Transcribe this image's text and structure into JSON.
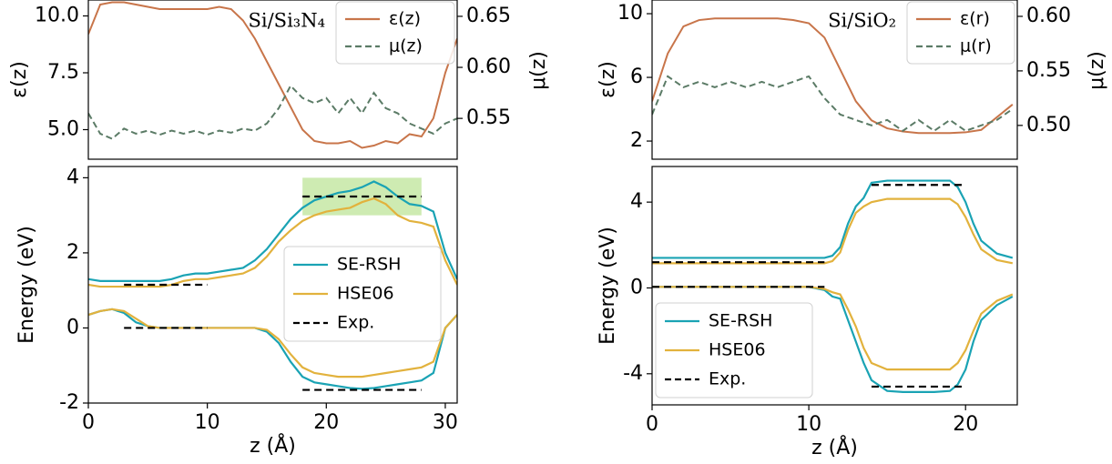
{
  "chart_data": [
    {
      "type": "line",
      "annotation": "Si/Si₃N₄",
      "ylabel": "ε(z)",
      "y2label": "μ(z)",
      "x": [
        0,
        1,
        2,
        3,
        4,
        5,
        6,
        7,
        8,
        9,
        10,
        11,
        12,
        13,
        14,
        15,
        16,
        17,
        18,
        19,
        20,
        21,
        22,
        23,
        24,
        25,
        26,
        27,
        28,
        29,
        30,
        31
      ],
      "xlim": [
        0,
        31
      ],
      "ylim": [
        3.7,
        10.7
      ],
      "yticks": [
        {
          "value": 5,
          "label": "5.0"
        },
        7.5,
        {
          "value": 10,
          "label": "10.0"
        }
      ],
      "y2lim": [
        0.51,
        0.666
      ],
      "y2ticks": [
        0.55,
        {
          "value": 0.6,
          "label": "0.60"
        },
        0.65
      ],
      "legend": "upper right",
      "series": [
        {
          "name": "ε(z)",
          "color": "#c8754a",
          "values": [
            9.2,
            10.5,
            10.6,
            10.6,
            10.5,
            10.4,
            10.3,
            10.3,
            10.3,
            10.3,
            10.3,
            10.4,
            10.3,
            9.8,
            9.0,
            8.0,
            7.0,
            6.0,
            5.0,
            4.5,
            4.4,
            4.4,
            4.5,
            4.2,
            4.3,
            4.5,
            4.4,
            4.8,
            4.7,
            5.5,
            7.5,
            9.0
          ]
        },
        {
          "name": "μ(z)",
          "color": "#5b7b66",
          "dash": true,
          "axis": "y2",
          "values": [
            0.555,
            0.535,
            0.53,
            0.54,
            0.535,
            0.538,
            0.534,
            0.538,
            0.535,
            0.538,
            0.534,
            0.538,
            0.536,
            0.54,
            0.538,
            0.545,
            0.56,
            0.582,
            0.57,
            0.565,
            0.57,
            0.555,
            0.57,
            0.555,
            0.575,
            0.56,
            0.555,
            0.545,
            0.54,
            0.535,
            0.545,
            0.55
          ]
        }
      ]
    },
    {
      "type": "band",
      "xlabel": "z (Å)",
      "ylabel": "Energy (eV)",
      "x": [
        0,
        1,
        2,
        3,
        4,
        5,
        6,
        7,
        8,
        9,
        10,
        11,
        12,
        13,
        14,
        15,
        16,
        17,
        18,
        19,
        20,
        21,
        22,
        23,
        24,
        25,
        26,
        27,
        28,
        29,
        30,
        31
      ],
      "xlim": [
        0,
        31
      ],
      "xticks": [
        0,
        10,
        20,
        30
      ],
      "ylim": [
        -2,
        4.3
      ],
      "yticks": [
        -2,
        0,
        2,
        4
      ],
      "legend": "center right",
      "highlight": {
        "x": [
          18,
          28
        ],
        "y": [
          3.0,
          4.0
        ],
        "color": "#c6e8a4"
      },
      "series": [
        {
          "name": "SE-RSH",
          "color": "#1aa3b4",
          "cbm": [
            1.3,
            1.25,
            1.25,
            1.25,
            1.25,
            1.25,
            1.25,
            1.3,
            1.4,
            1.45,
            1.45,
            1.5,
            1.55,
            1.6,
            1.8,
            2.1,
            2.5,
            2.9,
            3.2,
            3.4,
            3.5,
            3.6,
            3.65,
            3.75,
            3.9,
            3.75,
            3.5,
            3.3,
            3.25,
            3.1,
            2.0,
            1.3
          ],
          "vbm": [
            0.35,
            0.45,
            0.5,
            0.4,
            0.15,
            0.05,
            0,
            0,
            0,
            0,
            0,
            0,
            0,
            0,
            0,
            -0.1,
            -0.4,
            -0.9,
            -1.3,
            -1.45,
            -1.5,
            -1.55,
            -1.6,
            -1.62,
            -1.6,
            -1.55,
            -1.5,
            -1.45,
            -1.4,
            -1.2,
            0,
            0.35
          ]
        },
        {
          "name": "HSE06",
          "color": "#e2b23d",
          "cbm": [
            1.15,
            1.1,
            1.1,
            1.1,
            1.1,
            1.1,
            1.1,
            1.15,
            1.25,
            1.3,
            1.3,
            1.35,
            1.4,
            1.45,
            1.6,
            1.9,
            2.3,
            2.6,
            2.85,
            3.0,
            3.1,
            3.15,
            3.2,
            3.35,
            3.45,
            3.3,
            3.0,
            2.85,
            2.8,
            2.7,
            1.8,
            1.15
          ],
          "vbm": [
            0.35,
            0.45,
            0.5,
            0.45,
            0.25,
            0.05,
            0,
            0,
            0,
            0,
            0,
            0,
            0,
            0,
            0,
            -0.05,
            -0.3,
            -0.7,
            -1.05,
            -1.2,
            -1.25,
            -1.3,
            -1.3,
            -1.3,
            -1.25,
            -1.2,
            -1.15,
            -1.1,
            -1.05,
            -0.9,
            0,
            0.35
          ]
        },
        {
          "name": "Exp.",
          "color": "#000000",
          "dash": true,
          "segments": [
            {
              "x": [
                3,
                10
              ],
              "y": 1.15
            },
            {
              "x": [
                3,
                10
              ],
              "y": 0
            },
            {
              "x": [
                18,
                28
              ],
              "y": 3.5
            },
            {
              "x": [
                18,
                28
              ],
              "y": -1.65
            }
          ]
        }
      ]
    },
    {
      "type": "line",
      "annotation": "Si/SiO₂",
      "ylabel": "ε(z)",
      "y2label": "μ(z)",
      "x": [
        0,
        1,
        2,
        3,
        4,
        5,
        6,
        7,
        8,
        9,
        10,
        11,
        12,
        13,
        14,
        15,
        16,
        17,
        18,
        19,
        20,
        21,
        22,
        23
      ],
      "xlim": [
        0,
        23.3
      ],
      "ylim": [
        0.86,
        10.86
      ],
      "yticks": [
        2,
        6,
        10
      ],
      "y2lim": [
        0.469,
        0.615
      ],
      "y2ticks": [
        {
          "value": 0.5,
          "label": "0.50"
        },
        0.55,
        {
          "value": 0.6,
          "label": "0.60"
        }
      ],
      "legend": "upper right",
      "series": [
        {
          "name": "ε(r)",
          "color": "#c8754a",
          "values": [
            4.5,
            7.5,
            9.2,
            9.6,
            9.7,
            9.7,
            9.7,
            9.7,
            9.7,
            9.6,
            9.4,
            8.5,
            6.5,
            4.5,
            3.3,
            2.8,
            2.6,
            2.5,
            2.5,
            2.5,
            2.55,
            2.7,
            3.5,
            4.3
          ]
        },
        {
          "name": "μ(r)",
          "color": "#5b7b66",
          "dash": true,
          "axis": "y2",
          "values": [
            0.51,
            0.545,
            0.535,
            0.54,
            0.535,
            0.54,
            0.535,
            0.54,
            0.535,
            0.54,
            0.545,
            0.525,
            0.51,
            0.505,
            0.5,
            0.505,
            0.495,
            0.505,
            0.495,
            0.505,
            0.495,
            0.5,
            0.505,
            0.515
          ]
        }
      ]
    },
    {
      "type": "band",
      "xlabel": "z (Å)",
      "ylabel": "Energy (eV)",
      "x": [
        0,
        2,
        4,
        6,
        8,
        10,
        11,
        11.5,
        12,
        12.5,
        13,
        13.5,
        14,
        15,
        16,
        17,
        18,
        19,
        19.5,
        20,
        20.5,
        21,
        22,
        23
      ],
      "xlim": [
        0,
        23.3
      ],
      "xticks": [
        0,
        10,
        20
      ],
      "ylim": [
        -5.45,
        5.66
      ],
      "yticks": [
        -4,
        0,
        4
      ],
      "legend": "lower left",
      "series": [
        {
          "name": "SE-RSH",
          "color": "#1aa3b4",
          "cbm": [
            1.4,
            1.4,
            1.4,
            1.4,
            1.4,
            1.4,
            1.4,
            1.5,
            1.9,
            3.0,
            3.8,
            4.2,
            4.9,
            5.0,
            5.0,
            5.0,
            5.0,
            5.0,
            4.7,
            4.0,
            3.0,
            2.2,
            1.6,
            1.4
          ],
          "vbm": [
            0.05,
            0.05,
            0.05,
            0.05,
            0.05,
            0.05,
            -0.1,
            -0.4,
            -0.5,
            -1.5,
            -2.5,
            -3.5,
            -4.3,
            -4.8,
            -4.85,
            -4.85,
            -4.85,
            -4.8,
            -4.5,
            -3.8,
            -2.5,
            -1.5,
            -0.8,
            -0.4
          ]
        },
        {
          "name": "HSE06",
          "color": "#e2b23d",
          "cbm": [
            1.15,
            1.15,
            1.15,
            1.15,
            1.15,
            1.15,
            1.15,
            1.25,
            1.65,
            2.7,
            3.5,
            3.8,
            4.0,
            4.15,
            4.15,
            4.15,
            4.15,
            4.15,
            3.9,
            3.3,
            2.5,
            1.8,
            1.3,
            1.15
          ],
          "vbm": [
            0.05,
            0.05,
            0.05,
            0.05,
            0.05,
            0.05,
            -0.05,
            -0.2,
            -0.3,
            -1.0,
            -1.8,
            -2.8,
            -3.5,
            -3.8,
            -3.8,
            -3.8,
            -3.8,
            -3.8,
            -3.5,
            -2.9,
            -2.0,
            -1.2,
            -0.6,
            -0.3
          ]
        },
        {
          "name": "Exp.",
          "color": "#000000",
          "dash": true,
          "segments": [
            {
              "x": [
                0,
                11
              ],
              "y": 1.2
            },
            {
              "x": [
                0,
                11
              ],
              "y": 0.05
            },
            {
              "x": [
                14,
                20
              ],
              "y": 4.8
            },
            {
              "x": [
                14,
                20
              ],
              "y": -4.6
            }
          ]
        }
      ]
    }
  ]
}
